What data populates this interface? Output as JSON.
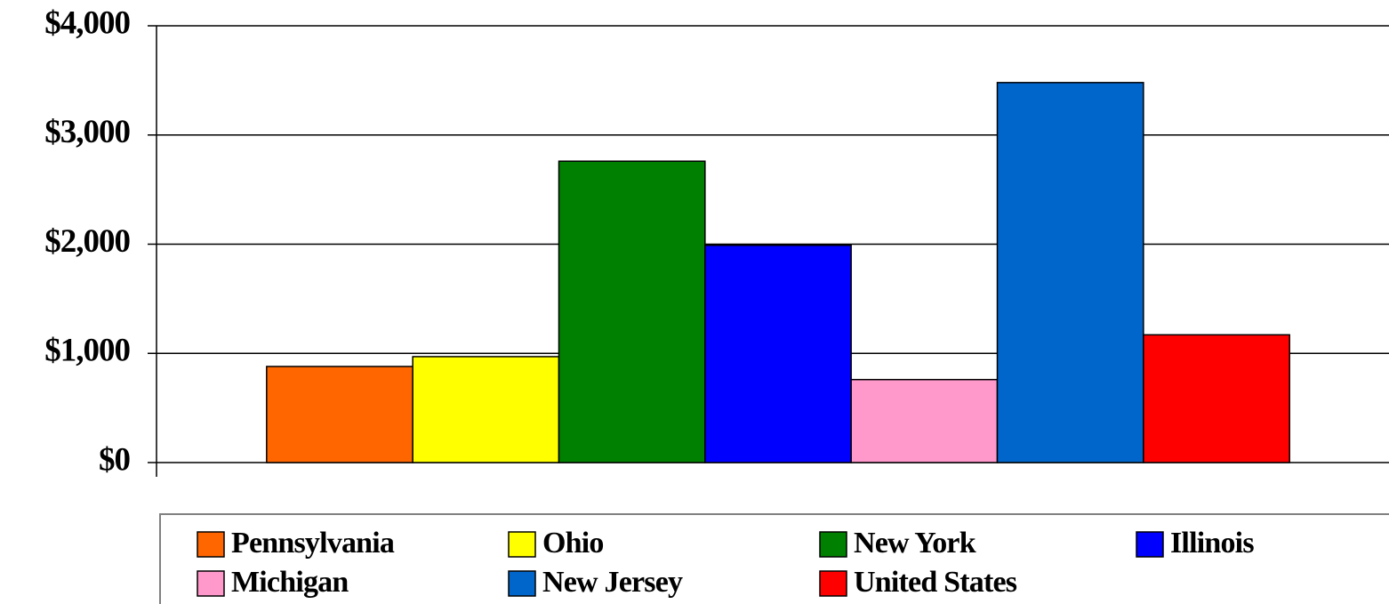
{
  "chart_data": {
    "type": "bar",
    "categories": [
      null
    ],
    "series": [
      {
        "name": "Pennsylvania",
        "color": "#ff6600",
        "values": [
          880
        ]
      },
      {
        "name": "Ohio",
        "color": "#ffff00",
        "values": [
          970
        ]
      },
      {
        "name": "New York",
        "color": "#008000",
        "values": [
          2760
        ]
      },
      {
        "name": "Illinois",
        "color": "#0000ff",
        "values": [
          1990
        ]
      },
      {
        "name": "Michigan",
        "color": "#ff99cc",
        "values": [
          760
        ]
      },
      {
        "name": "New Jersey",
        "color": "#0066cc",
        "values": [
          3480
        ]
      },
      {
        "name": "United States",
        "color": "#ff0000",
        "values": [
          1170
        ]
      }
    ],
    "ylim": [
      0,
      4000
    ],
    "yticks": [
      {
        "value": 0,
        "label": "$0"
      },
      {
        "value": 1000,
        "label": "$1,000"
      },
      {
        "value": 2000,
        "label": "$2,000"
      },
      {
        "value": 3000,
        "label": "$3,000"
      },
      {
        "value": 4000,
        "label": "$4,000"
      }
    ],
    "grid": true,
    "legend": "bottom"
  }
}
